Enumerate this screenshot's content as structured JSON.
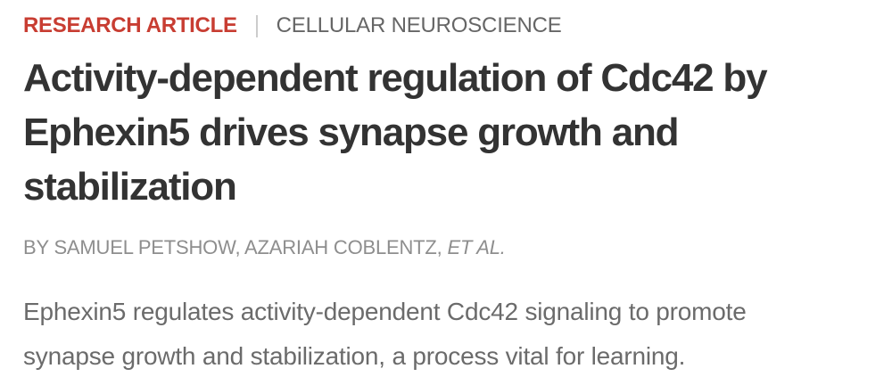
{
  "kicker": {
    "article_type": "RESEARCH ARTICLE",
    "section": "CELLULAR NEUROSCIENCE"
  },
  "title": {
    "full": "Activity-dependent regulation of Cdc42 by Ephexin5 drives synapse growth and stabilization",
    "lines": [
      "Activity-dependent regulation of Cdc42 by",
      "Ephexin5 drives synapse growth and",
      "stabilization"
    ]
  },
  "byline": {
    "authors": "BY SAMUEL PETSHOW, AZARIAH COBLENTZ, ",
    "et_al": "ET AL."
  },
  "teaser": {
    "full": "Ephexin5 regulates activity-dependent Cdc42 signaling to promote synapse growth and stabilization, a process vital for learning.",
    "lines": [
      "Ephexin5 regulates activity-dependent Cdc42 signaling to promote",
      "synapse growth and stabilization, a process vital for learning."
    ]
  },
  "colors": {
    "accent_red": "#c83d32",
    "section_gray": "#666666",
    "divider_gray": "#cccccc",
    "title_dark": "#333333",
    "byline_gray": "#8e8e8e",
    "teaser_gray": "#6b6b6b",
    "background": "#ffffff"
  }
}
